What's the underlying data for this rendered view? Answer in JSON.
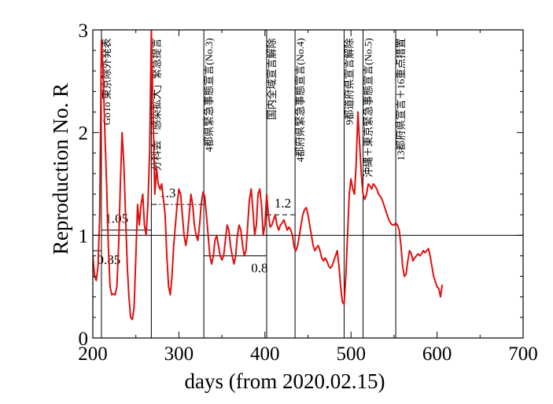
{
  "chart_data": {
    "type": "line",
    "title": "",
    "xlabel": "days   (from 2020.02.15)",
    "ylabel": "Reproduction No.  R",
    "xlim": [
      200,
      700
    ],
    "ylim": [
      0,
      3
    ],
    "x_ticks": [
      "200",
      "300",
      "400",
      "500",
      "600",
      "700"
    ],
    "y_ticks": [
      "0",
      "1",
      "2",
      "3"
    ],
    "grid": false,
    "line_color": "#e01010",
    "reference_line": {
      "y": 1
    },
    "series": [
      {
        "points": [
          [
            200,
            0.8
          ],
          [
            202,
            0.6
          ],
          [
            204,
            0.56
          ],
          [
            206,
            0.7
          ],
          [
            208,
            1.2
          ],
          [
            210,
            2.9
          ],
          [
            212,
            2.6
          ],
          [
            214,
            2.0
          ],
          [
            216,
            1.5
          ],
          [
            218,
            0.9
          ],
          [
            220,
            0.5
          ],
          [
            222,
            0.42
          ],
          [
            224,
            0.43
          ],
          [
            226,
            0.42
          ],
          [
            228,
            0.5
          ],
          [
            230,
            0.9
          ],
          [
            232,
            1.5
          ],
          [
            234,
            2.0
          ],
          [
            236,
            1.7
          ],
          [
            238,
            1.2
          ],
          [
            240,
            0.7
          ],
          [
            242,
            0.4
          ],
          [
            244,
            0.2
          ],
          [
            246,
            0.18
          ],
          [
            248,
            0.3
          ],
          [
            250,
            0.8
          ],
          [
            252,
            1.3
          ],
          [
            254,
            1.1
          ],
          [
            256,
            1.3
          ],
          [
            258,
            1.4
          ],
          [
            260,
            1.1
          ],
          [
            262,
            1.0
          ],
          [
            264,
            1.3
          ],
          [
            266,
            1.8
          ],
          [
            268,
            3.0
          ],
          [
            270,
            2.2
          ],
          [
            272,
            1.4
          ],
          [
            274,
            1.65
          ],
          [
            276,
            1.5
          ],
          [
            278,
            1.45
          ],
          [
            280,
            1.5
          ],
          [
            282,
            1.35
          ],
          [
            284,
            1.2
          ],
          [
            286,
            0.8
          ],
          [
            288,
            0.5
          ],
          [
            290,
            0.42
          ],
          [
            292,
            0.6
          ],
          [
            294,
            0.9
          ],
          [
            296,
            1.1
          ],
          [
            298,
            1.3
          ],
          [
            300,
            1.45
          ],
          [
            302,
            1.4
          ],
          [
            304,
            1.2
          ],
          [
            306,
            1.0
          ],
          [
            308,
            0.9
          ],
          [
            310,
            1.0
          ],
          [
            312,
            1.2
          ],
          [
            314,
            1.4
          ],
          [
            316,
            1.3
          ],
          [
            318,
            1.1
          ],
          [
            320,
            1.0
          ],
          [
            322,
            0.95
          ],
          [
            324,
            1.1
          ],
          [
            326,
            1.3
          ],
          [
            328,
            1.42
          ],
          [
            330,
            1.38
          ],
          [
            332,
            1.2
          ],
          [
            334,
            1.0
          ],
          [
            336,
            0.8
          ],
          [
            338,
            0.72
          ],
          [
            340,
            0.8
          ],
          [
            342,
            0.95
          ],
          [
            344,
            1.0
          ],
          [
            346,
            0.9
          ],
          [
            348,
            0.8
          ],
          [
            350,
            0.76
          ],
          [
            352,
            0.8
          ],
          [
            354,
            0.95
          ],
          [
            356,
            1.1
          ],
          [
            358,
            1.05
          ],
          [
            360,
            0.9
          ],
          [
            362,
            0.8
          ],
          [
            364,
            0.72
          ],
          [
            366,
            0.8
          ],
          [
            368,
            1.0
          ],
          [
            370,
            1.1
          ],
          [
            372,
            1.05
          ],
          [
            374,
            0.9
          ],
          [
            376,
            0.8
          ],
          [
            378,
            0.85
          ],
          [
            380,
            1.1
          ],
          [
            382,
            1.35
          ],
          [
            384,
            1.45
          ],
          [
            386,
            1.25
          ],
          [
            388,
            1.0
          ],
          [
            390,
            1.1
          ],
          [
            392,
            1.4
          ],
          [
            394,
            1.45
          ],
          [
            396,
            1.3
          ],
          [
            398,
            1.0
          ],
          [
            400,
            1.1
          ],
          [
            402,
            1.4
          ],
          [
            404,
            1.2
          ],
          [
            406,
            1.08
          ],
          [
            408,
            1.1
          ],
          [
            410,
            1.15
          ],
          [
            412,
            1.2
          ],
          [
            414,
            1.1
          ],
          [
            416,
            1.05
          ],
          [
            418,
            1.1
          ],
          [
            420,
            1.12
          ],
          [
            422,
            1.15
          ],
          [
            424,
            1.1
          ],
          [
            426,
            1.05
          ],
          [
            428,
            1.08
          ],
          [
            430,
            1.05
          ],
          [
            432,
            1.0
          ],
          [
            434,
            0.88
          ],
          [
            436,
            0.85
          ],
          [
            438,
            0.9
          ],
          [
            440,
            1.0
          ],
          [
            442,
            1.1
          ],
          [
            444,
            1.2
          ],
          [
            446,
            1.25
          ],
          [
            448,
            1.27
          ],
          [
            450,
            1.2
          ],
          [
            452,
            1.1
          ],
          [
            454,
            1.0
          ],
          [
            456,
            0.9
          ],
          [
            458,
            0.85
          ],
          [
            460,
            0.88
          ],
          [
            462,
            0.9
          ],
          [
            464,
            0.85
          ],
          [
            466,
            0.78
          ],
          [
            468,
            0.75
          ],
          [
            470,
            0.78
          ],
          [
            472,
            0.75
          ],
          [
            474,
            0.7
          ],
          [
            476,
            0.68
          ],
          [
            478,
            0.7
          ],
          [
            480,
            0.75
          ],
          [
            482,
            0.8
          ],
          [
            484,
            0.85
          ],
          [
            486,
            0.7
          ],
          [
            488,
            0.5
          ],
          [
            490,
            0.35
          ],
          [
            492,
            0.33
          ],
          [
            494,
            0.6
          ],
          [
            496,
            1.0
          ],
          [
            498,
            1.4
          ],
          [
            500,
            1.55
          ],
          [
            502,
            1.45
          ],
          [
            504,
            1.4
          ],
          [
            506,
            1.7
          ],
          [
            508,
            2.2
          ],
          [
            510,
            1.9
          ],
          [
            512,
            1.6
          ],
          [
            514,
            1.4
          ],
          [
            516,
            1.35
          ],
          [
            518,
            1.4
          ],
          [
            520,
            1.5
          ],
          [
            522,
            1.48
          ],
          [
            524,
            1.45
          ],
          [
            526,
            1.5
          ],
          [
            528,
            1.48
          ],
          [
            530,
            1.45
          ],
          [
            532,
            1.4
          ],
          [
            534,
            1.38
          ],
          [
            536,
            1.35
          ],
          [
            538,
            1.3
          ],
          [
            540,
            1.25
          ],
          [
            542,
            1.2
          ],
          [
            544,
            1.15
          ],
          [
            546,
            1.12
          ],
          [
            548,
            1.1
          ],
          [
            550,
            1.1
          ],
          [
            552,
            1.12
          ],
          [
            554,
            1.1
          ],
          [
            556,
            1.05
          ],
          [
            558,
            0.9
          ],
          [
            560,
            0.7
          ],
          [
            562,
            0.6
          ],
          [
            564,
            0.62
          ],
          [
            566,
            0.75
          ],
          [
            568,
            0.85
          ],
          [
            570,
            0.82
          ],
          [
            572,
            0.75
          ],
          [
            574,
            0.78
          ],
          [
            576,
            0.8
          ],
          [
            578,
            0.82
          ],
          [
            580,
            0.8
          ],
          [
            582,
            0.82
          ],
          [
            584,
            0.85
          ],
          [
            586,
            0.83
          ],
          [
            588,
            0.85
          ],
          [
            590,
            0.87
          ],
          [
            592,
            0.8
          ],
          [
            594,
            0.7
          ],
          [
            596,
            0.6
          ],
          [
            598,
            0.55
          ],
          [
            600,
            0.5
          ],
          [
            602,
            0.48
          ],
          [
            604,
            0.4
          ],
          [
            606,
            0.52
          ]
        ]
      }
    ],
    "events": [
      {
        "day": 210,
        "text": "GoTo 東京除外発表",
        "label_top_y": 2.92
      },
      {
        "day": 268,
        "text": "分科会「感染拡大」緊急提言",
        "label_top_y": 2.92
      },
      {
        "day": 329,
        "text": "4都県緊急事態宣言(No.3)",
        "label_top_y": 2.92
      },
      {
        "day": 402,
        "text": "国内全域宣言解除",
        "label_top_y": 2.92
      },
      {
        "day": 435,
        "text": "4都府県緊急事態宣言(No.4)",
        "label_top_y": 2.92
      },
      {
        "day": 492,
        "text": "9都道府県宣言解除",
        "label_top_y": 2.92
      },
      {
        "day": 514,
        "text": "沖縄＋東京緊急事態宣言(No.5)",
        "label_top_y": 2.92
      },
      {
        "day": 552,
        "text": "13都府県宣言＋16重点措置",
        "label_top_y": 2.92
      }
    ],
    "levels": [
      {
        "label": "0.85",
        "y": 0.85,
        "x_from": 200,
        "x_to": 210,
        "style": "solid",
        "label_at": [
          205,
          0.72
        ]
      },
      {
        "label": "1.05",
        "y": 1.05,
        "x_from": 210,
        "x_to": 268,
        "style": "solid",
        "label_at": [
          214,
          1.12
        ]
      },
      {
        "label": "1.3",
        "y": 1.3,
        "x_from": 268,
        "x_to": 329,
        "style": "dashdot",
        "label_at": [
          277,
          1.37
        ]
      },
      {
        "label": "0.8",
        "y": 0.8,
        "x_from": 329,
        "x_to": 402,
        "style": "solid",
        "label_at": [
          384,
          0.64
        ]
      },
      {
        "label": "1.2",
        "y": 1.2,
        "x_from": 402,
        "x_to": 435,
        "style": "dashed",
        "label_at": [
          411,
          1.27
        ]
      }
    ]
  }
}
